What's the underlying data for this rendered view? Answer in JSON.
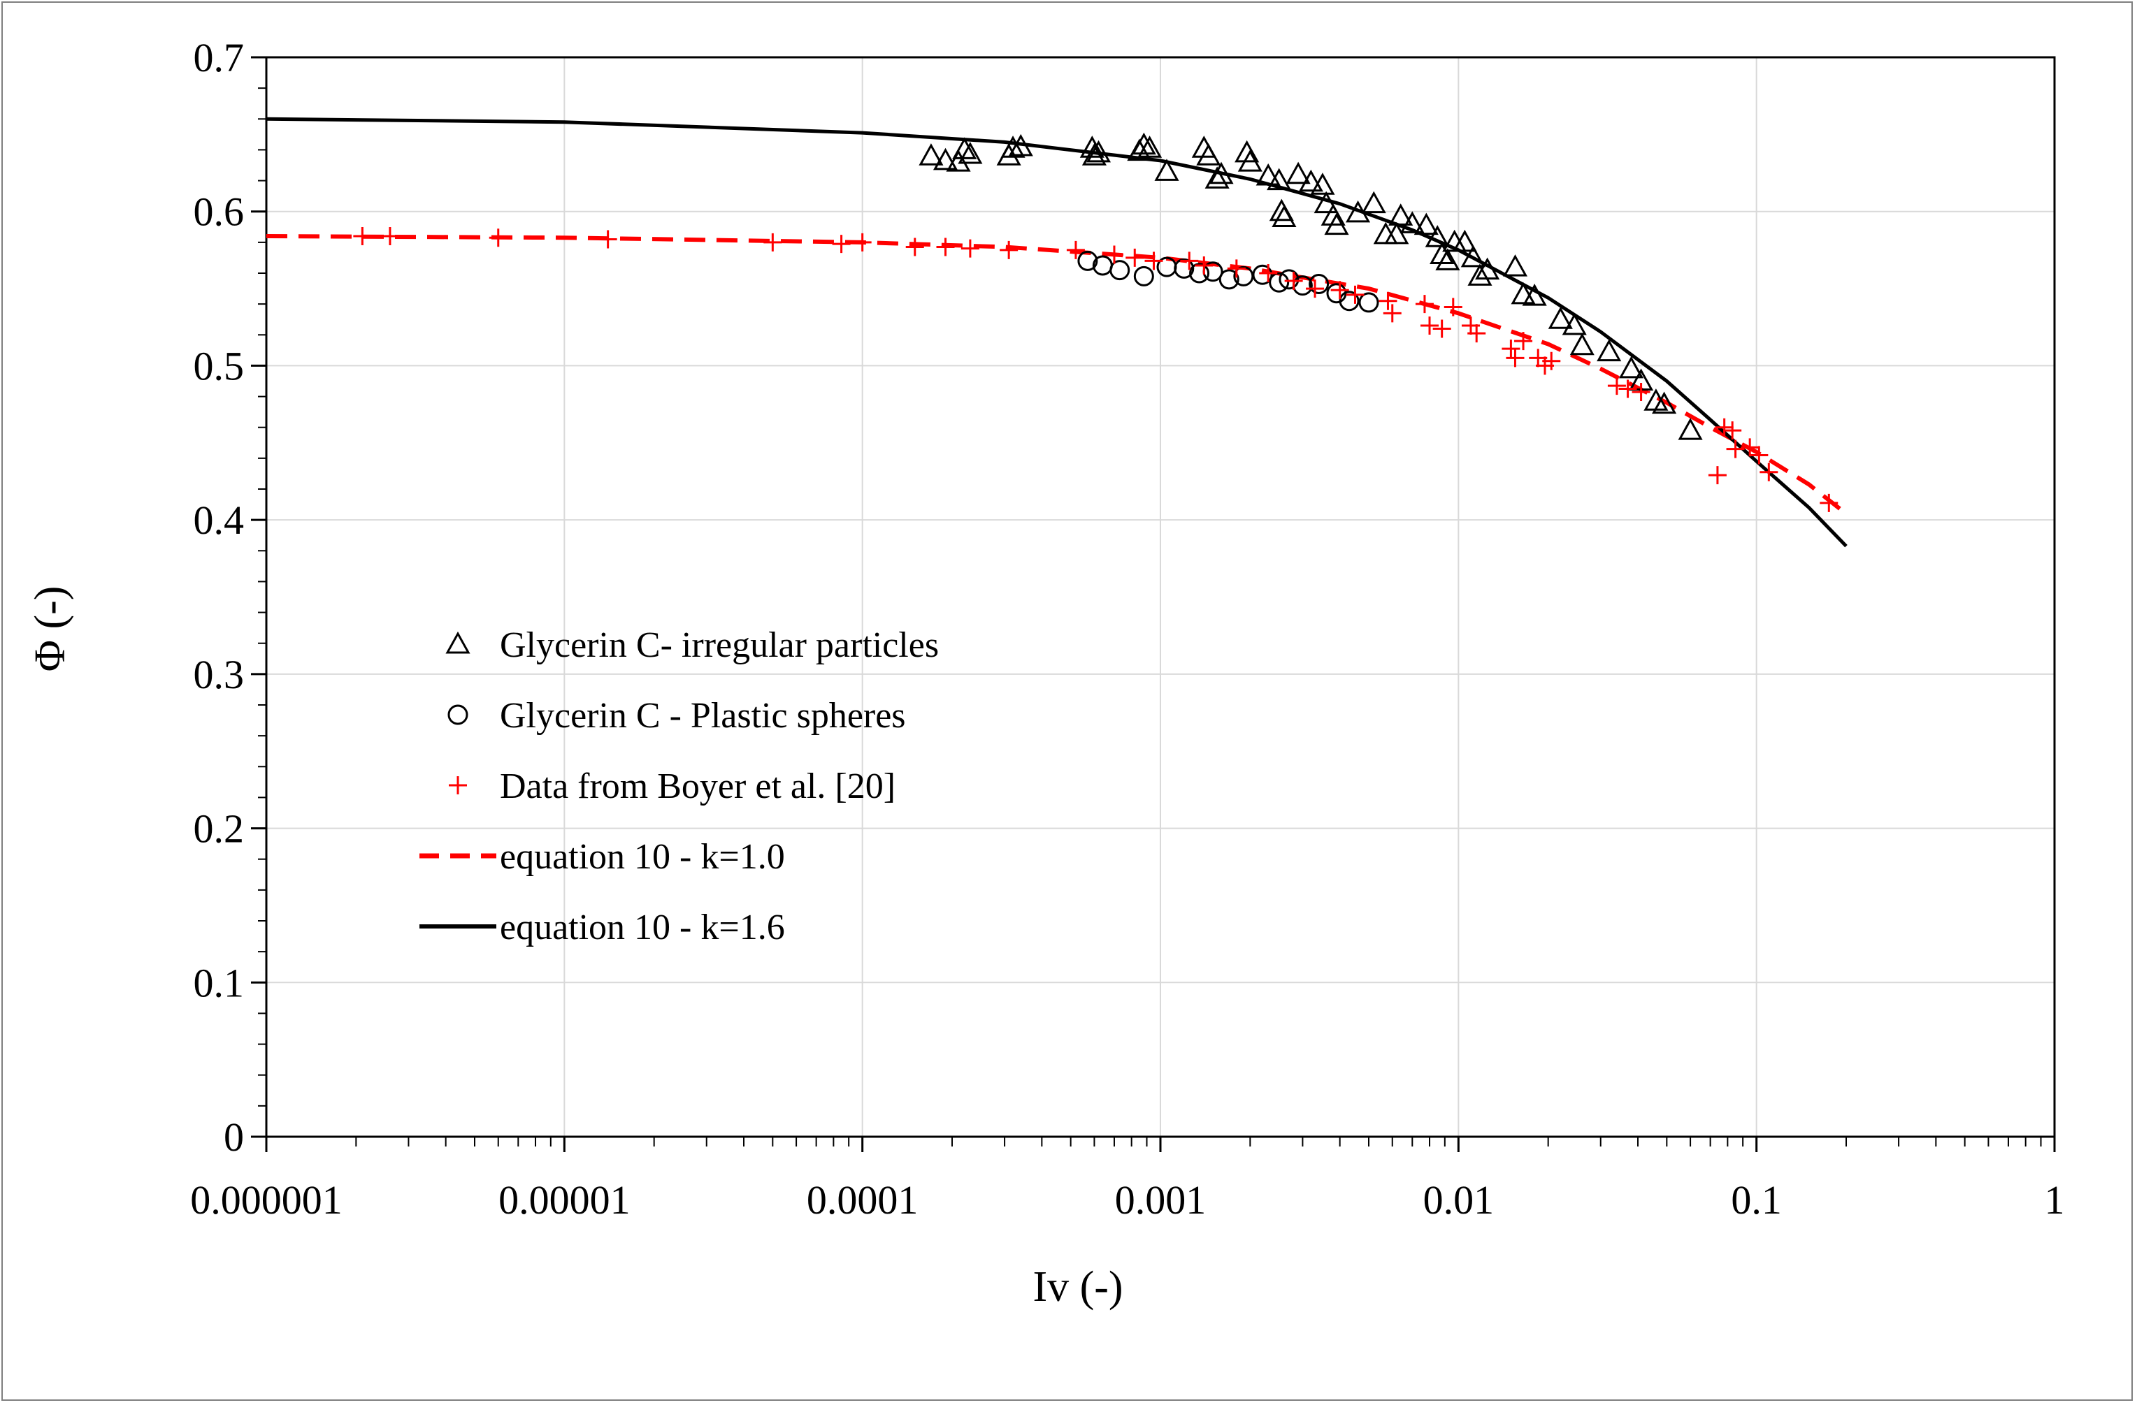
{
  "chart_data": {
    "type": "scatter",
    "title": "",
    "xlabel": "Iv (-)",
    "ylabel": "Φ (-)",
    "xscale": "log",
    "xlim": [
      1e-06,
      1
    ],
    "ylim": [
      0,
      0.7
    ],
    "grid": true,
    "legend_position": "center-left",
    "x_ticks": [
      {
        "value": 1e-06,
        "label": "0.000001"
      },
      {
        "value": 1e-05,
        "label": "0.00001"
      },
      {
        "value": 0.0001,
        "label": "0.0001"
      },
      {
        "value": 0.001,
        "label": "0.001"
      },
      {
        "value": 0.01,
        "label": "0.01"
      },
      {
        "value": 0.1,
        "label": "0.1"
      },
      {
        "value": 1,
        "label": "1"
      }
    ],
    "y_ticks": [
      {
        "value": 0,
        "label": "0"
      },
      {
        "value": 0.1,
        "label": "0.1"
      },
      {
        "value": 0.2,
        "label": "0.2"
      },
      {
        "value": 0.3,
        "label": "0.3"
      },
      {
        "value": 0.4,
        "label": "0.4"
      },
      {
        "value": 0.5,
        "label": "0.5"
      },
      {
        "value": 0.6,
        "label": "0.6"
      },
      {
        "value": 0.7,
        "label": "0.7"
      }
    ],
    "series": [
      {
        "name": "Glycerin C- irregular particles",
        "kind": "scatter",
        "marker": "triangle",
        "color": "#000000",
        "points": [
          [
            0.00017,
            0.636
          ],
          [
            0.00019,
            0.633
          ],
          [
            0.00021,
            0.632
          ],
          [
            0.00022,
            0.64
          ],
          [
            0.00023,
            0.637
          ],
          [
            0.00031,
            0.636
          ],
          [
            0.00032,
            0.641
          ],
          [
            0.00034,
            0.642
          ],
          [
            0.00059,
            0.641
          ],
          [
            0.0006,
            0.636
          ],
          [
            0.00062,
            0.638
          ],
          [
            0.00085,
            0.639
          ],
          [
            0.00088,
            0.643
          ],
          [
            0.00092,
            0.641
          ],
          [
            0.00105,
            0.626
          ],
          [
            0.0014,
            0.641
          ],
          [
            0.00145,
            0.636
          ],
          [
            0.00155,
            0.621
          ],
          [
            0.0016,
            0.624
          ],
          [
            0.00195,
            0.638
          ],
          [
            0.002,
            0.632
          ],
          [
            0.0023,
            0.623
          ],
          [
            0.0025,
            0.62
          ],
          [
            0.00255,
            0.6
          ],
          [
            0.0026,
            0.596
          ],
          [
            0.0029,
            0.624
          ],
          [
            0.0032,
            0.619
          ],
          [
            0.0035,
            0.617
          ],
          [
            0.0036,
            0.605
          ],
          [
            0.0038,
            0.597
          ],
          [
            0.0039,
            0.591
          ],
          [
            0.0046,
            0.599
          ],
          [
            0.0052,
            0.605
          ],
          [
            0.0057,
            0.585
          ],
          [
            0.0062,
            0.585
          ],
          [
            0.0064,
            0.597
          ],
          [
            0.007,
            0.592
          ],
          [
            0.0078,
            0.591
          ],
          [
            0.0085,
            0.583
          ],
          [
            0.0088,
            0.572
          ],
          [
            0.0092,
            0.568
          ],
          [
            0.0097,
            0.58
          ],
          [
            0.0105,
            0.58
          ],
          [
            0.0112,
            0.57
          ],
          [
            0.0118,
            0.558
          ],
          [
            0.0125,
            0.562
          ],
          [
            0.0155,
            0.564
          ],
          [
            0.0165,
            0.546
          ],
          [
            0.018,
            0.545
          ],
          [
            0.022,
            0.53
          ],
          [
            0.0245,
            0.526
          ],
          [
            0.026,
            0.513
          ],
          [
            0.032,
            0.509
          ],
          [
            0.038,
            0.498
          ],
          [
            0.041,
            0.49
          ],
          [
            0.046,
            0.477
          ],
          [
            0.049,
            0.475
          ],
          [
            0.06,
            0.458
          ]
        ]
      },
      {
        "name": "Glycerin C - Plastic spheres",
        "kind": "scatter",
        "marker": "circle",
        "color": "#000000",
        "points": [
          [
            0.00057,
            0.568
          ],
          [
            0.00064,
            0.565
          ],
          [
            0.00073,
            0.562
          ],
          [
            0.00088,
            0.558
          ],
          [
            0.00105,
            0.564
          ],
          [
            0.0012,
            0.563
          ],
          [
            0.00135,
            0.56
          ],
          [
            0.0015,
            0.561
          ],
          [
            0.0017,
            0.556
          ],
          [
            0.0019,
            0.558
          ],
          [
            0.0022,
            0.559
          ],
          [
            0.0025,
            0.554
          ],
          [
            0.0027,
            0.556
          ],
          [
            0.003,
            0.552
          ],
          [
            0.0034,
            0.553
          ],
          [
            0.0039,
            0.547
          ],
          [
            0.0043,
            0.542
          ],
          [
            0.005,
            0.541
          ]
        ]
      },
      {
        "name": "Data from Boyer et al. [20]",
        "kind": "scatter",
        "marker": "plus",
        "color": "#ff0000",
        "points": [
          [
            2.1e-06,
            0.584
          ],
          [
            2.6e-06,
            0.584
          ],
          [
            6e-06,
            0.583
          ],
          [
            1.4e-05,
            0.582
          ],
          [
            5e-05,
            0.58
          ],
          [
            8.5e-05,
            0.579
          ],
          [
            0.0001,
            0.58
          ],
          [
            0.00015,
            0.577
          ],
          [
            0.00019,
            0.577
          ],
          [
            0.00023,
            0.576
          ],
          [
            0.00031,
            0.575
          ],
          [
            0.00052,
            0.575
          ],
          [
            0.0007,
            0.572
          ],
          [
            0.00082,
            0.57
          ],
          [
            0.00095,
            0.568
          ],
          [
            0.00125,
            0.568
          ],
          [
            0.0014,
            0.565
          ],
          [
            0.0018,
            0.563
          ],
          [
            0.0023,
            0.56
          ],
          [
            0.0028,
            0.555
          ],
          [
            0.0033,
            0.55
          ],
          [
            0.004,
            0.549
          ],
          [
            0.0045,
            0.546
          ],
          [
            0.0058,
            0.542
          ],
          [
            0.006,
            0.534
          ],
          [
            0.0077,
            0.54
          ],
          [
            0.008,
            0.526
          ],
          [
            0.0088,
            0.524
          ],
          [
            0.0096,
            0.538
          ],
          [
            0.011,
            0.526
          ],
          [
            0.0115,
            0.521
          ],
          [
            0.015,
            0.511
          ],
          [
            0.0155,
            0.505
          ],
          [
            0.0165,
            0.516
          ],
          [
            0.0185,
            0.505
          ],
          [
            0.0195,
            0.5
          ],
          [
            0.0205,
            0.503
          ],
          [
            0.034,
            0.487
          ],
          [
            0.037,
            0.485
          ],
          [
            0.041,
            0.483
          ],
          [
            0.074,
            0.429
          ],
          [
            0.078,
            0.46
          ],
          [
            0.083,
            0.458
          ],
          [
            0.085,
            0.446
          ],
          [
            0.095,
            0.447
          ],
          [
            0.102,
            0.442
          ],
          [
            0.11,
            0.431
          ],
          [
            0.175,
            0.411
          ]
        ]
      },
      {
        "name": "equation 10 - k=1.0",
        "kind": "line",
        "style": "dashed",
        "color": "#ff0000",
        "points": [
          [
            1e-06,
            0.584
          ],
          [
            1e-05,
            0.583
          ],
          [
            0.0001,
            0.58
          ],
          [
            0.0003,
            0.577
          ],
          [
            0.001,
            0.57
          ],
          [
            0.002,
            0.563
          ],
          [
            0.005,
            0.55
          ],
          [
            0.01,
            0.534
          ],
          [
            0.02,
            0.514
          ],
          [
            0.03,
            0.498
          ],
          [
            0.05,
            0.476
          ],
          [
            0.07,
            0.46
          ],
          [
            0.1,
            0.444
          ],
          [
            0.15,
            0.423
          ],
          [
            0.2,
            0.404
          ]
        ]
      },
      {
        "name": "equation 10 - k=1.6",
        "kind": "line",
        "style": "solid",
        "color": "#000000",
        "points": [
          [
            1e-06,
            0.66
          ],
          [
            1e-05,
            0.658
          ],
          [
            0.0001,
            0.651
          ],
          [
            0.0003,
            0.645
          ],
          [
            0.001,
            0.633
          ],
          [
            0.002,
            0.621
          ],
          [
            0.004,
            0.605
          ],
          [
            0.007,
            0.588
          ],
          [
            0.01,
            0.575
          ],
          [
            0.02,
            0.544
          ],
          [
            0.03,
            0.522
          ],
          [
            0.05,
            0.49
          ],
          [
            0.07,
            0.465
          ],
          [
            0.1,
            0.438
          ],
          [
            0.15,
            0.408
          ],
          [
            0.2,
            0.383
          ]
        ]
      }
    ],
    "annotations": []
  }
}
